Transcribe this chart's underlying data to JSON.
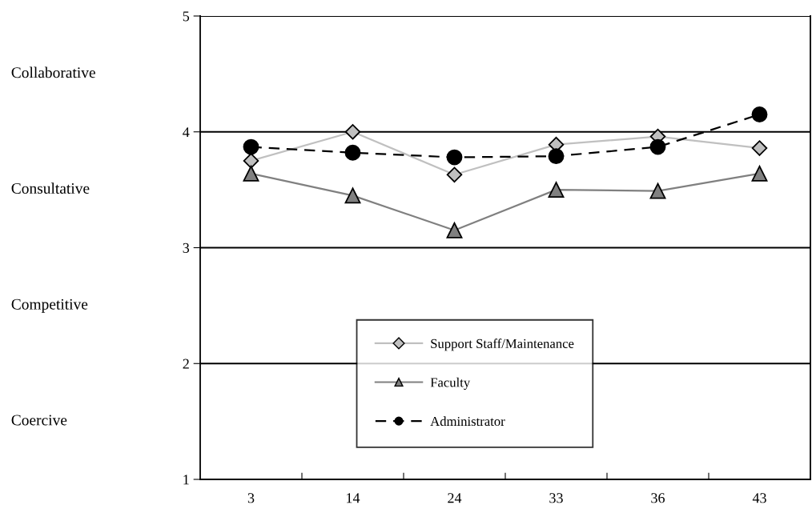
{
  "chart_data": {
    "type": "line",
    "categories": [
      "3",
      "14",
      "24",
      "33",
      "36",
      "43"
    ],
    "series": [
      {
        "name": "Support Staff/Maintenance",
        "color": "#c0c0c0",
        "marker": "diamond",
        "line_style": "solid",
        "values": [
          3.75,
          4.0,
          3.63,
          3.89,
          3.96,
          3.86
        ]
      },
      {
        "name": "Faculty",
        "color": "#808080",
        "marker": "triangle",
        "line_style": "solid",
        "values": [
          3.64,
          3.45,
          3.15,
          3.5,
          3.49,
          3.64
        ]
      },
      {
        "name": "Administrator",
        "color": "#000000",
        "marker": "circle",
        "line_style": "dashed",
        "values": [
          3.87,
          3.82,
          3.78,
          3.79,
          3.87,
          4.15
        ]
      }
    ],
    "ylim": [
      1,
      5
    ],
    "yticks": [
      1,
      2,
      3,
      4,
      5
    ],
    "grid": "y",
    "legend": "bottom",
    "annotations": [
      "Collaborative",
      "Consultative",
      "Competitive",
      "Coercive"
    ]
  }
}
